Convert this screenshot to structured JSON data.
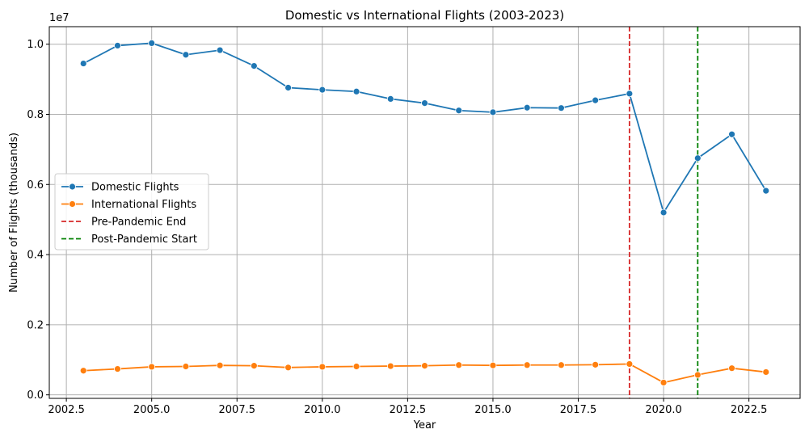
{
  "chart_data": {
    "type": "line",
    "title": "Domestic vs International Flights (2003-2023)",
    "xlabel": "Year",
    "ylabel": "Number of Flights (thousands)",
    "y_offset_label": "1e7",
    "xlim": [
      2002,
      2024
    ],
    "ylim": [
      -100000,
      10500000
    ],
    "x_ticks": [
      2002.5,
      2005.0,
      2007.5,
      2010.0,
      2012.5,
      2015.0,
      2017.5,
      2020.0,
      2022.5
    ],
    "x_tick_labels": [
      "2002.5",
      "2005.0",
      "2007.5",
      "2010.0",
      "2012.5",
      "2015.0",
      "2017.5",
      "2020.0",
      "2022.5"
    ],
    "y_ticks": [
      0,
      2000000,
      4000000,
      6000000,
      8000000,
      10000000
    ],
    "y_tick_labels": [
      "0.0",
      "0.2",
      "0.4",
      "0.6",
      "0.8",
      "1.0"
    ],
    "grid": true,
    "legend_position": "center-left",
    "x": [
      2003,
      2004,
      2005,
      2006,
      2007,
      2008,
      2009,
      2010,
      2011,
      2012,
      2013,
      2014,
      2015,
      2016,
      2017,
      2018,
      2019,
      2020,
      2021,
      2022,
      2023
    ],
    "series": [
      {
        "name": "Domestic Flights",
        "color": "#1f77b4",
        "values": [
          9450000,
          9960000,
          10030000,
          9700000,
          9830000,
          9380000,
          8760000,
          8700000,
          8650000,
          8440000,
          8320000,
          8110000,
          8060000,
          8190000,
          8180000,
          8400000,
          8590000,
          5200000,
          6750000,
          7430000,
          5820000
        ]
      },
      {
        "name": "International Flights",
        "color": "#ff7f0e",
        "values": [
          690000,
          740000,
          800000,
          810000,
          840000,
          830000,
          780000,
          800000,
          810000,
          820000,
          830000,
          850000,
          840000,
          850000,
          850000,
          860000,
          880000,
          350000,
          570000,
          760000,
          650000
        ]
      }
    ],
    "reference_lines": [
      {
        "name": "Pre-Pandemic End",
        "x": 2019,
        "color": "#d62728",
        "style": "dashed"
      },
      {
        "name": "Post-Pandemic Start",
        "x": 2021,
        "color": "#008000",
        "style": "dashed"
      }
    ]
  }
}
